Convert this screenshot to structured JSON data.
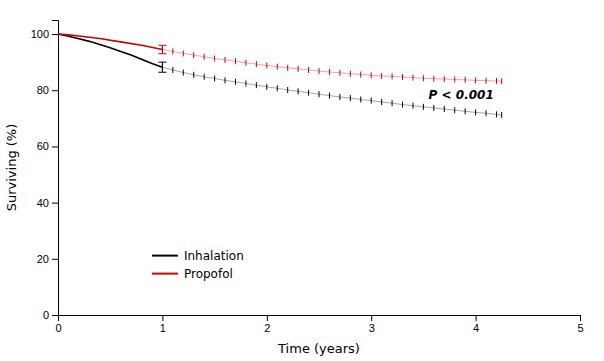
{
  "chart_data": {
    "type": "line",
    "xlabel": "Time (years)",
    "ylabel": "Surviving (%)",
    "xlim": [
      0,
      5
    ],
    "ylim": [
      0,
      105
    ],
    "xticks": [
      0,
      1,
      2,
      3,
      4,
      5
    ],
    "yticks": [
      0,
      20,
      40,
      60,
      80,
      100
    ],
    "grid": false,
    "legend": "lower left",
    "series": [
      {
        "name": "Inhalation",
        "color": "#000000",
        "line_style": "solid",
        "x": [
          0,
          0.1,
          0.2,
          0.3,
          0.4,
          0.5,
          0.6,
          0.7,
          0.8,
          0.9,
          1.0
        ],
        "values": [
          100,
          99.2,
          98.3,
          97.4,
          96.3,
          95.1,
          93.8,
          92.5,
          91.0,
          89.5,
          88.2
        ],
        "error_bar": {
          "x": 1.0,
          "y": 88.2,
          "error": 1.8
        }
      },
      {
        "name": "Propofol",
        "color": "#cc0000",
        "line_style": "solid",
        "x": [
          0,
          0.1,
          0.2,
          0.4,
          0.6,
          0.8,
          1.0
        ],
        "values": [
          100,
          99.7,
          99.3,
          98.4,
          97.2,
          96.0,
          94.5
        ],
        "error_bar": {
          "x": 1.0,
          "y": 94.5,
          "error": 1.5
        }
      },
      {
        "name": "Inhalation",
        "color": "#000000",
        "line_style": "thin",
        "marker": "tick",
        "x": [
          1.0,
          1.1,
          1.2,
          1.3,
          1.4,
          1.5,
          1.6,
          1.7,
          1.8,
          1.9,
          2.0,
          2.1,
          2.2,
          2.3,
          2.4,
          2.5,
          2.6,
          2.7,
          2.8,
          2.9,
          3.0,
          3.1,
          3.2,
          3.3,
          3.4,
          3.5,
          3.6,
          3.7,
          3.8,
          3.9,
          4.0,
          4.1,
          4.2,
          4.25
        ],
        "values": [
          88.2,
          87.2,
          86.3,
          85.5,
          84.8,
          84.2,
          83.5,
          83.0,
          82.4,
          81.8,
          81.2,
          80.7,
          80.1,
          79.6,
          79.1,
          78.6,
          78.1,
          77.6,
          77.2,
          76.7,
          76.3,
          75.8,
          75.4,
          74.9,
          74.5,
          74.1,
          73.7,
          73.3,
          72.9,
          72.5,
          72.1,
          71.8,
          71.4,
          71.2
        ]
      },
      {
        "name": "Propofol",
        "color": "#cc0000",
        "line_style": "thin",
        "marker": "tick",
        "x": [
          1.0,
          1.1,
          1.2,
          1.3,
          1.4,
          1.5,
          1.6,
          1.7,
          1.8,
          1.9,
          2.0,
          2.1,
          2.2,
          2.3,
          2.4,
          2.5,
          2.6,
          2.7,
          2.8,
          2.9,
          3.0,
          3.1,
          3.2,
          3.3,
          3.4,
          3.5,
          3.6,
          3.7,
          3.8,
          3.9,
          4.0,
          4.1,
          4.2,
          4.25
        ],
        "values": [
          94.5,
          93.8,
          93.1,
          92.5,
          91.9,
          91.3,
          90.8,
          90.3,
          89.8,
          89.3,
          88.8,
          88.4,
          88.0,
          87.6,
          87.2,
          86.8,
          86.5,
          86.2,
          85.9,
          85.6,
          85.3,
          85.1,
          84.9,
          84.7,
          84.5,
          84.3,
          84.1,
          84.0,
          83.8,
          83.7,
          83.5,
          83.4,
          83.3,
          83.2
        ]
      }
    ],
    "annotations": [
      {
        "text": "P < 0.001",
        "x": 3.55,
        "y": 75.5
      }
    ]
  }
}
